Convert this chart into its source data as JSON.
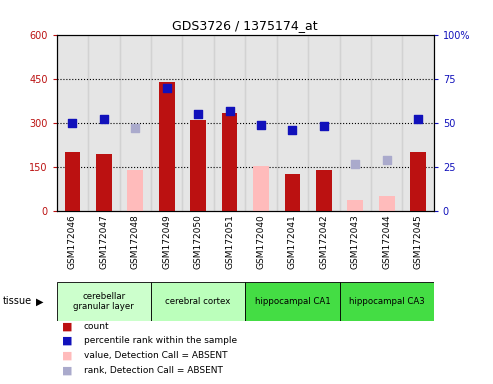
{
  "title": "GDS3726 / 1375174_at",
  "samples": [
    "GSM172046",
    "GSM172047",
    "GSM172048",
    "GSM172049",
    "GSM172050",
    "GSM172051",
    "GSM172040",
    "GSM172041",
    "GSM172042",
    "GSM172043",
    "GSM172044",
    "GSM172045"
  ],
  "count_values": [
    200,
    195,
    null,
    440,
    310,
    335,
    null,
    128,
    140,
    null,
    null,
    200
  ],
  "count_absent_values": [
    null,
    null,
    140,
    null,
    null,
    null,
    152,
    null,
    null,
    38,
    52,
    null
  ],
  "rank_present": [
    50,
    52,
    null,
    70,
    55,
    57,
    49,
    46,
    48,
    null,
    null,
    52
  ],
  "rank_absent": [
    null,
    null,
    47,
    null,
    null,
    null,
    null,
    null,
    null,
    27,
    29,
    null
  ],
  "left_ylim": [
    0,
    600
  ],
  "right_ylim": [
    0,
    100
  ],
  "left_yticks": [
    0,
    150,
    300,
    450,
    600
  ],
  "right_yticks": [
    0,
    25,
    50,
    75,
    100
  ],
  "right_yticklabels": [
    "0",
    "25",
    "50",
    "75",
    "100%"
  ],
  "left_yticklabels": [
    "0",
    "150",
    "300",
    "450",
    "600"
  ],
  "tissue_groups": [
    {
      "label": "cerebellar\ngranular layer",
      "start": 0,
      "end": 3,
      "color": "#ccffcc"
    },
    {
      "label": "cerebral cortex",
      "start": 3,
      "end": 6,
      "color": "#bbffbb"
    },
    {
      "label": "hippocampal CA1",
      "start": 6,
      "end": 9,
      "color": "#44dd44"
    },
    {
      "label": "hippocampal CA3",
      "start": 9,
      "end": 12,
      "color": "#44dd44"
    }
  ],
  "bar_width": 0.5,
  "count_color": "#bb1111",
  "count_absent_color": "#ffbbbb",
  "rank_present_color": "#1111bb",
  "rank_absent_color": "#aaaacc",
  "grid_color": "black",
  "legend_items": [
    {
      "label": "count",
      "color": "#bb1111"
    },
    {
      "label": "percentile rank within the sample",
      "color": "#1111bb"
    },
    {
      "label": "value, Detection Call = ABSENT",
      "color": "#ffbbbb"
    },
    {
      "label": "rank, Detection Call = ABSENT",
      "color": "#aaaacc"
    }
  ],
  "col_bg_color": "#cccccc",
  "plot_bg_color": "#ffffff",
  "fig_bg_color": "#ffffff"
}
